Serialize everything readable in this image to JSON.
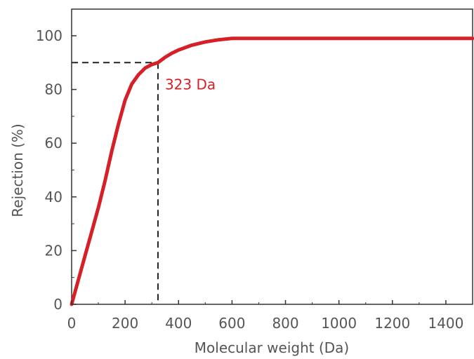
{
  "chart_data": {
    "type": "line",
    "title": "",
    "xlabel": "Molecular weight (Da)",
    "ylabel": "Rejection (%)",
    "xlim": [
      0,
      1500
    ],
    "ylim": [
      0,
      110
    ],
    "x_ticks": [
      0,
      200,
      400,
      600,
      800,
      1000,
      1200,
      1400
    ],
    "y_ticks": [
      0,
      20,
      40,
      60,
      80,
      100
    ],
    "grid": false,
    "series": [
      {
        "name": "",
        "color": "#d62027",
        "x": [
          0,
          25,
          50,
          75,
          100,
          125,
          150,
          175,
          200,
          225,
          250,
          275,
          300,
          323,
          350,
          375,
          400,
          450,
          500,
          550,
          600,
          650,
          700,
          800,
          900,
          1000,
          1100,
          1200,
          1300,
          1400,
          1500
        ],
        "y": [
          0,
          9,
          18,
          27,
          36,
          46,
          57,
          67,
          76,
          82,
          85.5,
          88,
          89.3,
          90,
          92,
          93.5,
          94.7,
          96.5,
          97.7,
          98.5,
          99,
          99,
          99,
          99,
          99,
          99,
          99,
          99,
          99,
          99,
          99
        ]
      }
    ],
    "annotations": [
      {
        "text": "323 Da",
        "x": 323,
        "y": 90,
        "color": "#d62027"
      }
    ]
  }
}
